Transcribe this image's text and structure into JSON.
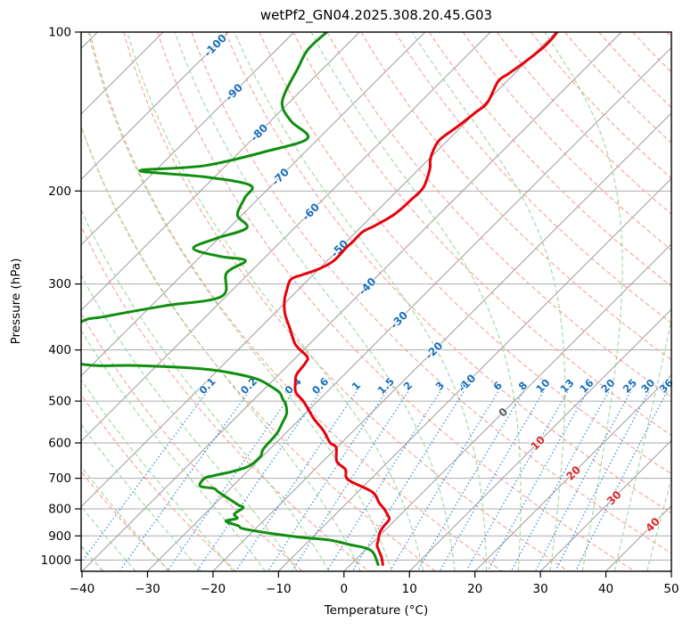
{
  "title": "wetPf2_GN04.2025.308.20.45.G03",
  "axes": {
    "xlabel": "Temperature (°C)",
    "ylabel": "Pressure (hPa)",
    "x_tick_labels": [
      "−40",
      "−30",
      "−20",
      "−10",
      "0",
      "10",
      "20",
      "30",
      "40",
      "50"
    ],
    "x_tick_values": [
      -40,
      -30,
      -20,
      -10,
      0,
      10,
      20,
      30,
      40,
      50
    ],
    "y_tick_labels": [
      "100",
      "200",
      "300",
      "400",
      "500",
      "600",
      "700",
      "800",
      "900",
      "1000"
    ],
    "y_tick_values": [
      100,
      200,
      300,
      400,
      500,
      600,
      700,
      800,
      900,
      1000
    ]
  },
  "style": {
    "temperature_color": "#e8000b",
    "dewpoint_color": "#0f8f0f",
    "isotherm_color": "#9b9b9b",
    "isobar_color": "#ababab",
    "dry_adiabat_color": "#f4a29a",
    "moist_adiabat_color": "#9fd69f",
    "mixing_ratio_color": "#4f97d7",
    "label_blue": "#1a6fba",
    "label_gray": "#595959",
    "label_red": "#d62727",
    "spine_color": "#000000"
  },
  "chart_data": {
    "type": "line",
    "subtype": "skewt-log-p",
    "title": "wetPf2_GN04.2025.308.20.45.G03",
    "xlabel": "Temperature (°C)",
    "ylabel": "Pressure (hPa)",
    "xlim": [
      -40,
      50
    ],
    "pressure_lim": [
      1050,
      100
    ],
    "skew_deg": 45,
    "isobars": [
      100,
      200,
      300,
      400,
      500,
      600,
      700,
      800,
      900,
      1000
    ],
    "isotherms": {
      "start": -160,
      "end": 50,
      "step": 10
    },
    "isotherm_labels": [
      {
        "t": -100,
        "p": 106
      },
      {
        "t": -90,
        "p": 130
      },
      {
        "t": -80,
        "p": 155
      },
      {
        "t": -70,
        "p": 188
      },
      {
        "t": -60,
        "p": 219
      },
      {
        "t": -50,
        "p": 257
      },
      {
        "t": -40,
        "p": 303
      },
      {
        "t": -30,
        "p": 351
      },
      {
        "t": -20,
        "p": 401
      },
      {
        "t": -10,
        "p": 462
      },
      {
        "t": 0,
        "p": 525
      },
      {
        "t": 10,
        "p": 600
      },
      {
        "t": 20,
        "p": 684
      },
      {
        "t": 30,
        "p": 762
      },
      {
        "t": 40,
        "p": 857
      }
    ],
    "dry_adiabats": {
      "start_c": -40,
      "end_c": 190,
      "step_c": 10
    },
    "moist_adiabats": {
      "start_c": -40,
      "end_c": 45,
      "step_c": 5
    },
    "mixing_ratio_g_kg": [
      0.1,
      0.2,
      0.4,
      0.6,
      1,
      1.5,
      2,
      3,
      4,
      6,
      8,
      10,
      13,
      16,
      20,
      25,
      30,
      36
    ],
    "mixing_ratio_label_pressure": 473,
    "mixing_ratio_line_top_pressure": 480,
    "series": [
      {
        "name": "temperature",
        "points_p_t": [
          [
            1020,
            4.9
          ],
          [
            990,
            3.7
          ],
          [
            960,
            2.2
          ],
          [
            938,
            1.1
          ],
          [
            914,
            0.4
          ],
          [
            889,
            -0.4
          ],
          [
            864,
            -0.8
          ],
          [
            838,
            -1.0
          ],
          [
            822,
            -1.9
          ],
          [
            800,
            -3.4
          ],
          [
            779,
            -5.1
          ],
          [
            743,
            -7.8
          ],
          [
            704,
            -13.4
          ],
          [
            674,
            -15.3
          ],
          [
            650,
            -17.9
          ],
          [
            612,
            -20.1
          ],
          [
            600,
            -21.7
          ],
          [
            568,
            -24.7
          ],
          [
            540,
            -27.9
          ],
          [
            520,
            -30.0
          ],
          [
            500,
            -32.2
          ],
          [
            481,
            -34.7
          ],
          [
            462,
            -36.2
          ],
          [
            445,
            -37.3
          ],
          [
            424,
            -37.7
          ],
          [
            412,
            -38.4
          ],
          [
            391,
            -42.0
          ],
          [
            363,
            -45.5
          ],
          [
            342,
            -48.3
          ],
          [
            323,
            -50.4
          ],
          [
            308,
            -51.7
          ],
          [
            294,
            -52.7
          ],
          [
            288,
            -51.6
          ],
          [
            281,
            -50.0
          ],
          [
            271,
            -49.0
          ],
          [
            256,
            -49.1
          ],
          [
            250,
            -49.0
          ],
          [
            239,
            -49.0
          ],
          [
            232,
            -48.0
          ],
          [
            221,
            -46.8
          ],
          [
            207,
            -46.5
          ],
          [
            197,
            -46.5
          ],
          [
            182,
            -48.3
          ],
          [
            175,
            -49.6
          ],
          [
            168,
            -50.6
          ],
          [
            160,
            -51.3
          ],
          [
            151,
            -50.6
          ],
          [
            142,
            -50.0
          ],
          [
            136,
            -49.7
          ],
          [
            124,
            -51.3
          ],
          [
            120,
            -50.9
          ],
          [
            116,
            -50.4
          ],
          [
            112,
            -50.0
          ],
          [
            107,
            -49.6
          ],
          [
            103,
            -49.6
          ],
          [
            100,
            -49.8
          ]
        ]
      },
      {
        "name": "dewpoint",
        "points_p_t": [
          [
            1020,
            4.2
          ],
          [
            968,
            1.6
          ],
          [
            948,
            -0.4
          ],
          [
            935,
            -3.2
          ],
          [
            916,
            -7.1
          ],
          [
            905,
            -12.0
          ],
          [
            890,
            -17.1
          ],
          [
            872,
            -21.9
          ],
          [
            861,
            -23.1
          ],
          [
            844,
            -25.7
          ],
          [
            834,
            -24.4
          ],
          [
            818,
            -25.5
          ],
          [
            796,
            -25.1
          ],
          [
            787,
            -26.2
          ],
          [
            772,
            -27.9
          ],
          [
            743,
            -31.3
          ],
          [
            732,
            -32.5
          ],
          [
            724,
            -35.0
          ],
          [
            700,
            -35.5
          ],
          [
            692,
            -34.5
          ],
          [
            679,
            -32.2
          ],
          [
            664,
            -30.6
          ],
          [
            637,
            -30.3
          ],
          [
            620,
            -30.9
          ],
          [
            607,
            -31.1
          ],
          [
            576,
            -31.3
          ],
          [
            549,
            -32.1
          ],
          [
            527,
            -32.9
          ],
          [
            506,
            -34.5
          ],
          [
            496,
            -35.6
          ],
          [
            482,
            -37.1
          ],
          [
            471,
            -39.0
          ],
          [
            454,
            -42.7
          ],
          [
            440,
            -48.6
          ],
          [
            433,
            -53.9
          ],
          [
            428,
            -63.2
          ],
          [
            426,
            -71.4
          ],
          [
            400,
            -82.0
          ],
          [
            354,
            -78.3
          ],
          [
            346,
            -75.5
          ],
          [
            330,
            -68.0
          ],
          [
            317,
            -60.7
          ],
          [
            286,
            -63.5
          ],
          [
            271,
            -62.5
          ],
          [
            266,
            -67.0
          ],
          [
            257,
            -72.3
          ],
          [
            246,
            -70.4
          ],
          [
            235,
            -67.3
          ],
          [
            222,
            -70.7
          ],
          [
            206,
            -72.2
          ],
          [
            195,
            -73.3
          ],
          [
            188,
            -81.6
          ],
          [
            183,
            -92.4
          ],
          [
            179,
            -83.2
          ],
          [
            168,
            -75.9
          ],
          [
            159,
            -71.7
          ],
          [
            148,
            -76.6
          ],
          [
            139,
            -80.2
          ],
          [
            131,
            -82.0
          ],
          [
            117,
            -83.9
          ],
          [
            108,
            -85.2
          ],
          [
            100,
            -85.0
          ]
        ]
      }
    ]
  }
}
